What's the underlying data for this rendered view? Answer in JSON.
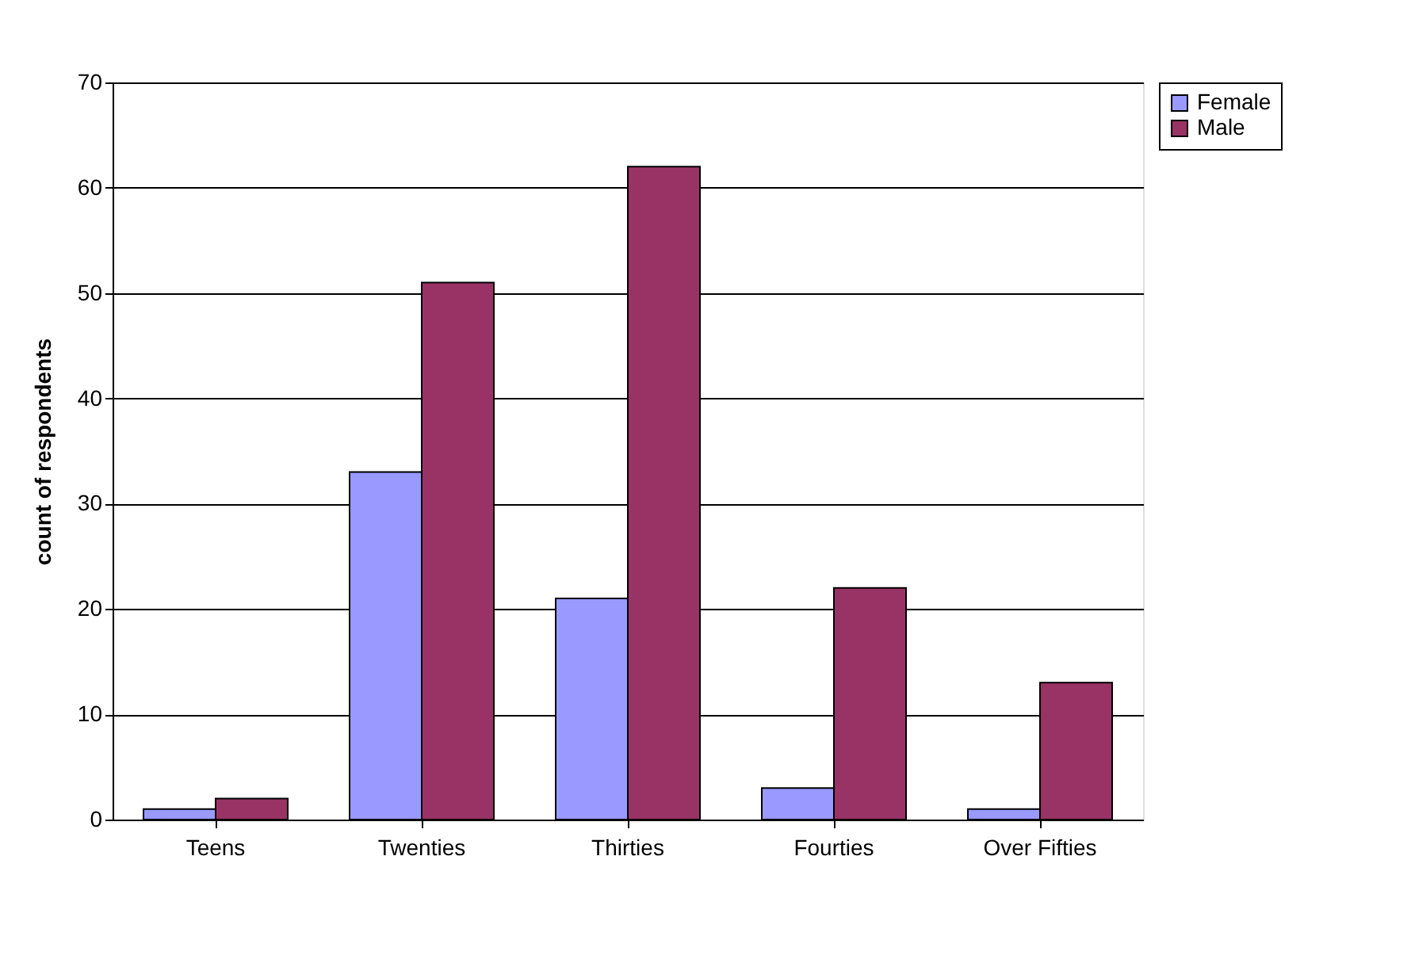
{
  "chart_data": {
    "type": "bar",
    "ylabel": "count of respondents",
    "categories": [
      "Teens",
      "Twenties",
      "Thirties",
      "Fourties",
      "Over Fifties"
    ],
    "series": [
      {
        "name": "Female",
        "color": "#9999ff",
        "values": [
          1,
          33,
          21,
          3,
          1
        ]
      },
      {
        "name": "Male",
        "color": "#993366",
        "values": [
          2,
          51,
          62,
          22,
          13
        ]
      }
    ],
    "ylim": [
      0,
      70
    ],
    "yticks": [
      0,
      10,
      20,
      30,
      40,
      50,
      60,
      70
    ],
    "grid": "y",
    "legend": "right"
  }
}
